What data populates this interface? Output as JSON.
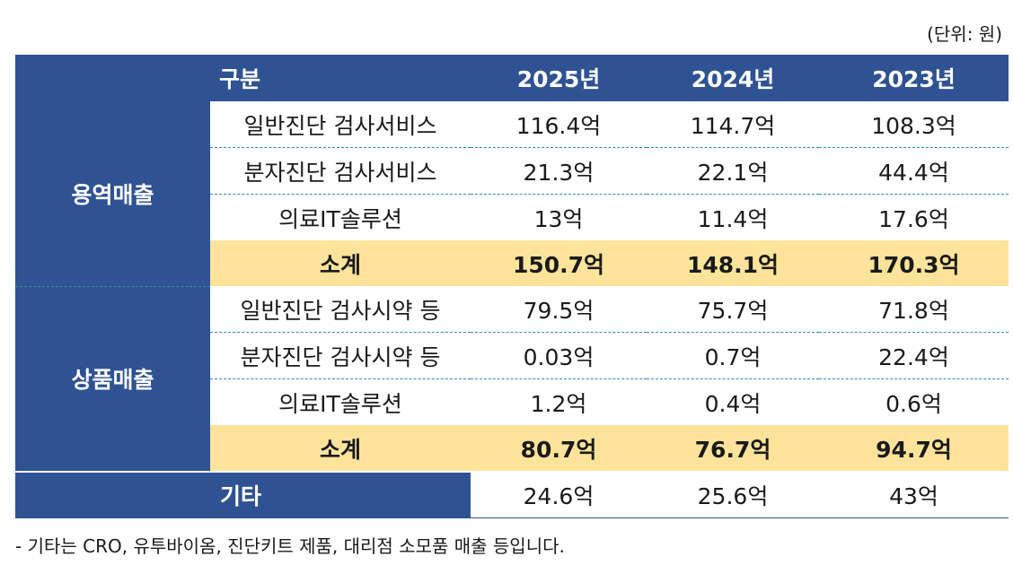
{
  "unit_note": "(단위: 원)",
  "header": {
    "label": "구분",
    "years": [
      "2025년",
      "2024년",
      "2023년"
    ]
  },
  "groups": [
    {
      "name": "용역매출",
      "rows": [
        {
          "label": "일반진단 검사서비스",
          "values": [
            "116.4억",
            "114.7억",
            "108.3억"
          ]
        },
        {
          "label": "분자진단 검사서비스",
          "values": [
            "21.3억",
            "22.1억",
            "44.4억"
          ]
        },
        {
          "label": "의료IT솔루션",
          "values": [
            "13억",
            "11.4억",
            "17.6억"
          ]
        }
      ],
      "subtotal": {
        "label": "소계",
        "values": [
          "150.7억",
          "148.1억",
          "170.3억"
        ]
      }
    },
    {
      "name": "상품매출",
      "rows": [
        {
          "label": "일반진단 검사시약 등",
          "values": [
            "79.5억",
            "75.7억",
            "71.8억"
          ]
        },
        {
          "label": "분자진단 검사시약 등",
          "values": [
            "0.03억",
            "0.7억",
            "22.4억"
          ]
        },
        {
          "label": "의료IT솔루션",
          "values": [
            "1.2억",
            "0.4억",
            "0.6억"
          ]
        }
      ],
      "subtotal": {
        "label": "소계",
        "values": [
          "80.7억",
          "76.7억",
          "94.7억"
        ]
      }
    }
  ],
  "etc": {
    "label": "기타",
    "values": [
      "24.6억",
      "25.6억",
      "43억"
    ]
  },
  "footnote": "- 기타는 CRO, 유투바이옴, 진단키트 제품, 대리점 소모품 매출 등입니다.",
  "colors": {
    "header_bg": "#2f5293",
    "subtotal_bg": "#fde49a",
    "divider": "#2e8f9f"
  }
}
